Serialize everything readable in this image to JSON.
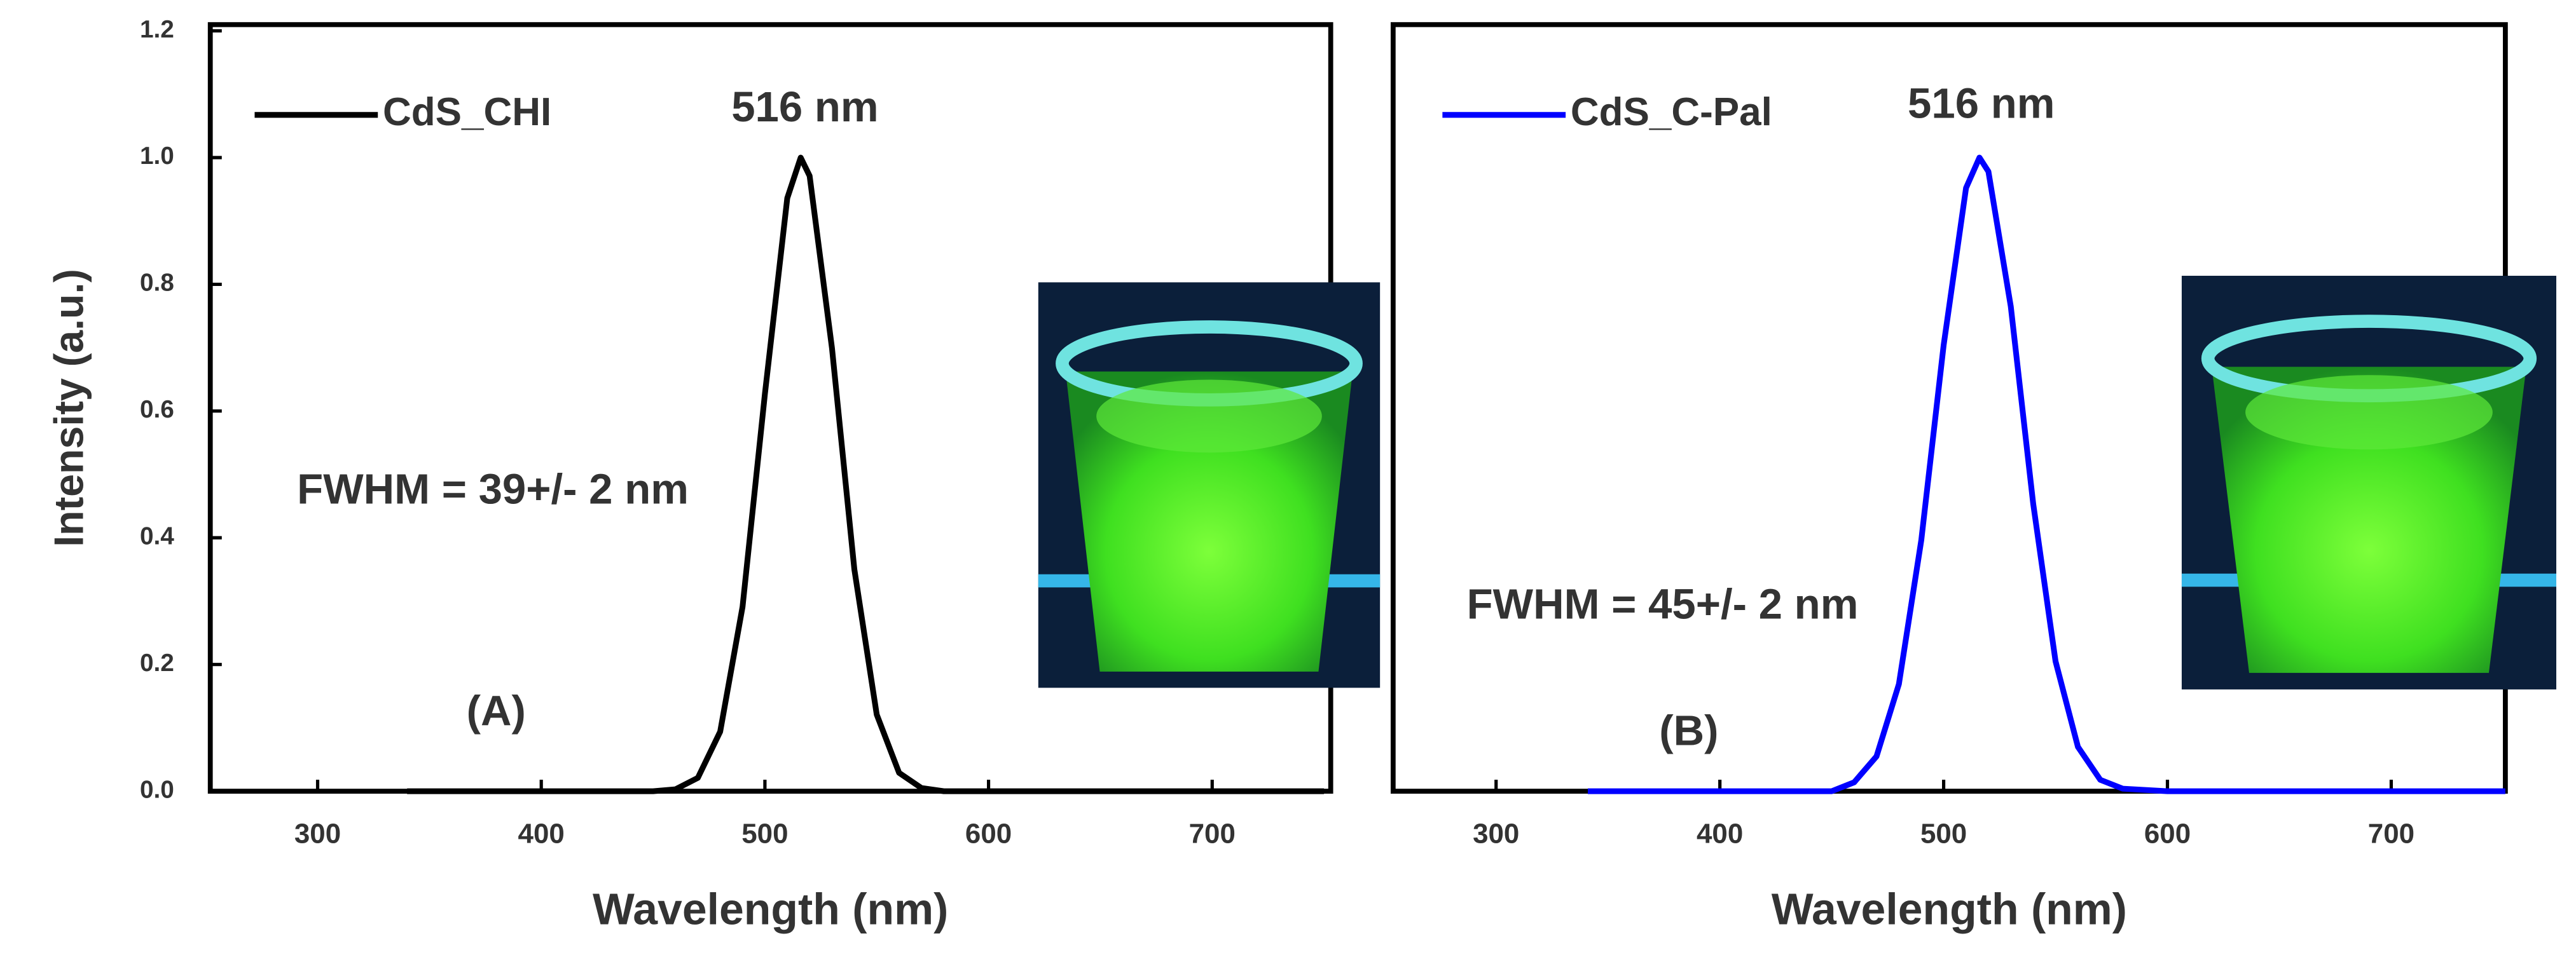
{
  "chart_data": [
    {
      "type": "line",
      "xlabel": "Wavelength (nm)",
      "ylabel": "Intensity (a.u.)",
      "annotations": [
        "516 nm",
        "FWHM = 39+/- 2 nm",
        "(A)"
      ],
      "x": [
        340,
        400,
        450,
        460,
        470,
        480,
        490,
        500,
        510,
        516,
        520,
        530,
        540,
        550,
        560,
        570,
        580,
        600,
        700,
        750
      ],
      "series": [
        {
          "name": "CdS_CHI",
          "color": "#000000",
          "values": [
            0,
            0,
            0,
            0.003,
            0.021,
            0.094,
            0.291,
            0.627,
            0.936,
            1.0,
            0.971,
            0.699,
            0.35,
            0.121,
            0.029,
            0.005,
            0,
            0,
            0,
            0
          ]
        }
      ],
      "xlim": [
        252,
        753
      ],
      "xticks": [
        300,
        400,
        500,
        600,
        700
      ],
      "ylim": [
        0,
        1.2
      ],
      "yticks": [
        {
          "value": 0,
          "label": "0.0"
        },
        0.2,
        0.4,
        0.6,
        0.8,
        {
          "value": 1,
          "label": "1.0"
        },
        1.2
      ]
    },
    {
      "type": "line",
      "xlabel": "Wavelength (nm)",
      "annotations": [
        "516 nm",
        "FWHM = 45+/- 2 nm",
        "(B)"
      ],
      "x": [
        341,
        400,
        450,
        460,
        470,
        480,
        490,
        500,
        510,
        516,
        520,
        530,
        540,
        550,
        560,
        570,
        580,
        600,
        700,
        751
      ],
      "series": [
        {
          "name": "CdS_C-Pal",
          "color": "#0000ff",
          "values": [
            0,
            0,
            0,
            0.014,
            0.055,
            0.169,
            0.396,
            0.704,
            0.952,
            1.0,
            0.978,
            0.765,
            0.454,
            0.205,
            0.07,
            0.018,
            0.004,
            0,
            0,
            0
          ]
        }
      ],
      "xlim": [
        254,
        751
      ],
      "xticks": [
        300,
        400,
        500,
        600,
        700
      ],
      "ylim": [
        0,
        1.2
      ]
    }
  ]
}
